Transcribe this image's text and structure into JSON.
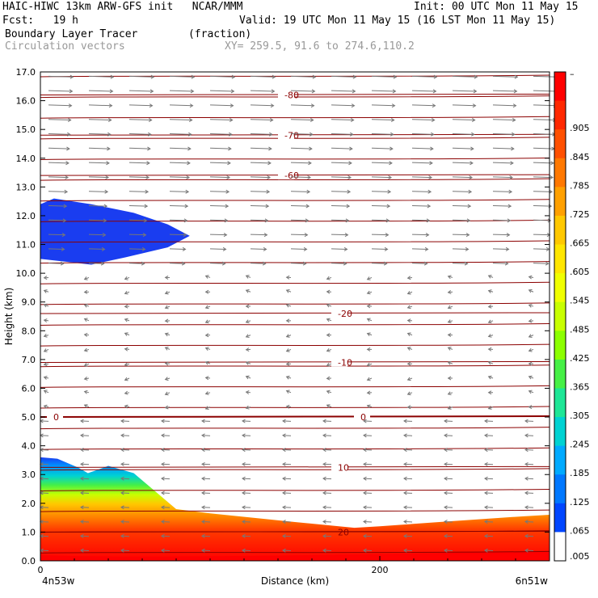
{
  "header": {
    "model_line": "HAIC-HIWC 13km ARW-GFS init   NCAR/MMM",
    "init_line": "Init: 00 UTC Mon 11 May 15",
    "fcst_line": "Fcst:   19 h",
    "valid_line": "Valid: 19 UTC Mon 11 May 15 (16 LST Mon 11 May 15)",
    "field_line": "Boundary Layer Tracer        (fraction)",
    "vector_line": "Circulation vectors",
    "xy_line": "XY= 259.5, 91.6 to 274.6,110.2"
  },
  "chart_data": {
    "type": "heatmap",
    "xlabel": "Distance (km)",
    "ylabel": "Height (km)",
    "xlim": [
      0,
      300
    ],
    "ylim": [
      0.0,
      17.0
    ],
    "x_ticks": [
      0,
      200
    ],
    "x_tick_labels": [
      "0",
      "200"
    ],
    "x_end_labels": [
      "4n53w",
      "6n51w"
    ],
    "y_ticks": [
      "0.0",
      "1.0",
      "2.0",
      "3.0",
      "4.0",
      "5.0",
      "6.0",
      "7.0",
      "8.0",
      "9.0",
      "10.0",
      "11.0",
      "12.0",
      "13.0",
      "14.0",
      "15.0",
      "16.0",
      "17.0"
    ],
    "colorbar_labels": [
      "–",
      ".905",
      ".845",
      ".785",
      ".725",
      ".665",
      ".605",
      ".545",
      ".485",
      ".425",
      ".365",
      ".305",
      ".245",
      ".185",
      ".125",
      ".065",
      ".005"
    ],
    "colorbar_colors": [
      "#ff0000",
      "#ff2800",
      "#ff5000",
      "#ff7800",
      "#ffa000",
      "#ffc800",
      "#ffe600",
      "#f0ff00",
      "#c8ff00",
      "#8cff00",
      "#46f046",
      "#1ee696",
      "#00d2d2",
      "#00aaff",
      "#0078ff",
      "#0046ff",
      "#ffffff"
    ],
    "temperature_contours": [
      {
        "label": "-80",
        "height_km": 16.2
      },
      {
        "label": "-70",
        "height_km": 14.8
      },
      {
        "label": "-60",
        "height_km": 13.4
      },
      {
        "label": "-20",
        "height_km": 8.6
      },
      {
        "label": "-10",
        "height_km": 6.9
      },
      {
        "label": "0",
        "height_km": 5.0
      },
      {
        "label": "10",
        "height_km": 3.25
      },
      {
        "label": "20",
        "height_km": 1.0
      }
    ]
  },
  "colors": {
    "contour": "#8b0000",
    "vector": "#777777",
    "upper_tracer": "#1a3df0"
  }
}
